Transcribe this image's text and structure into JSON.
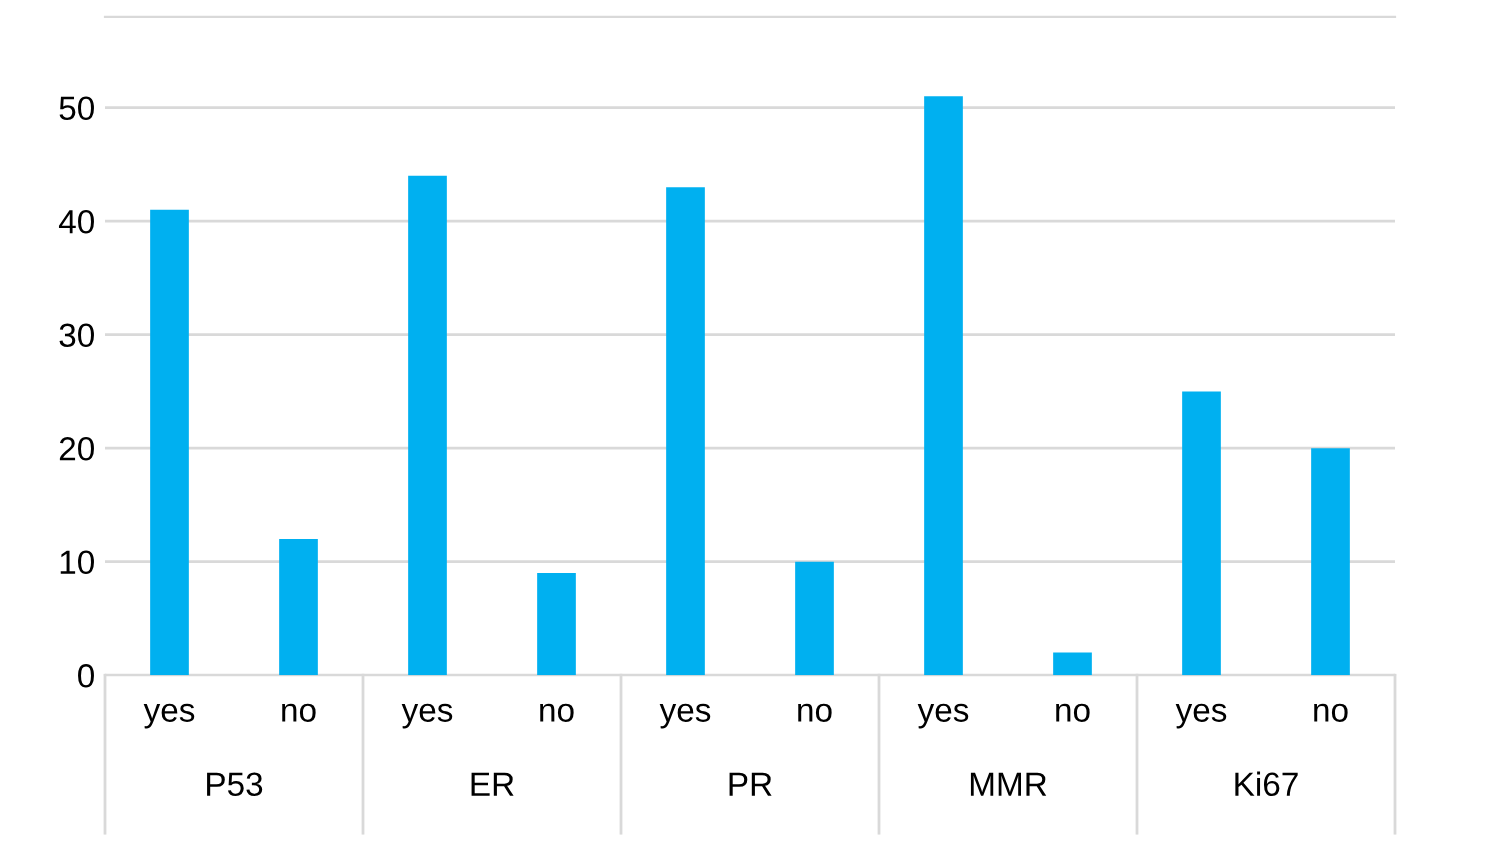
{
  "chart_data": {
    "type": "bar",
    "categories": [
      "yes",
      "no",
      "yes",
      "no",
      "yes",
      "no",
      "yes",
      "no",
      "yes",
      "no"
    ],
    "values": [
      41,
      12,
      44,
      9,
      43,
      10,
      51,
      2,
      25,
      20
    ],
    "color": "#00b0f0",
    "ylim": [
      0,
      58
    ],
    "yticks": [
      0,
      10,
      20,
      30,
      40,
      50
    ],
    "grid": "y",
    "legend": false,
    "annotations": [
      "P53",
      "ER",
      "PR",
      "MMR",
      "Ki67"
    ]
  }
}
